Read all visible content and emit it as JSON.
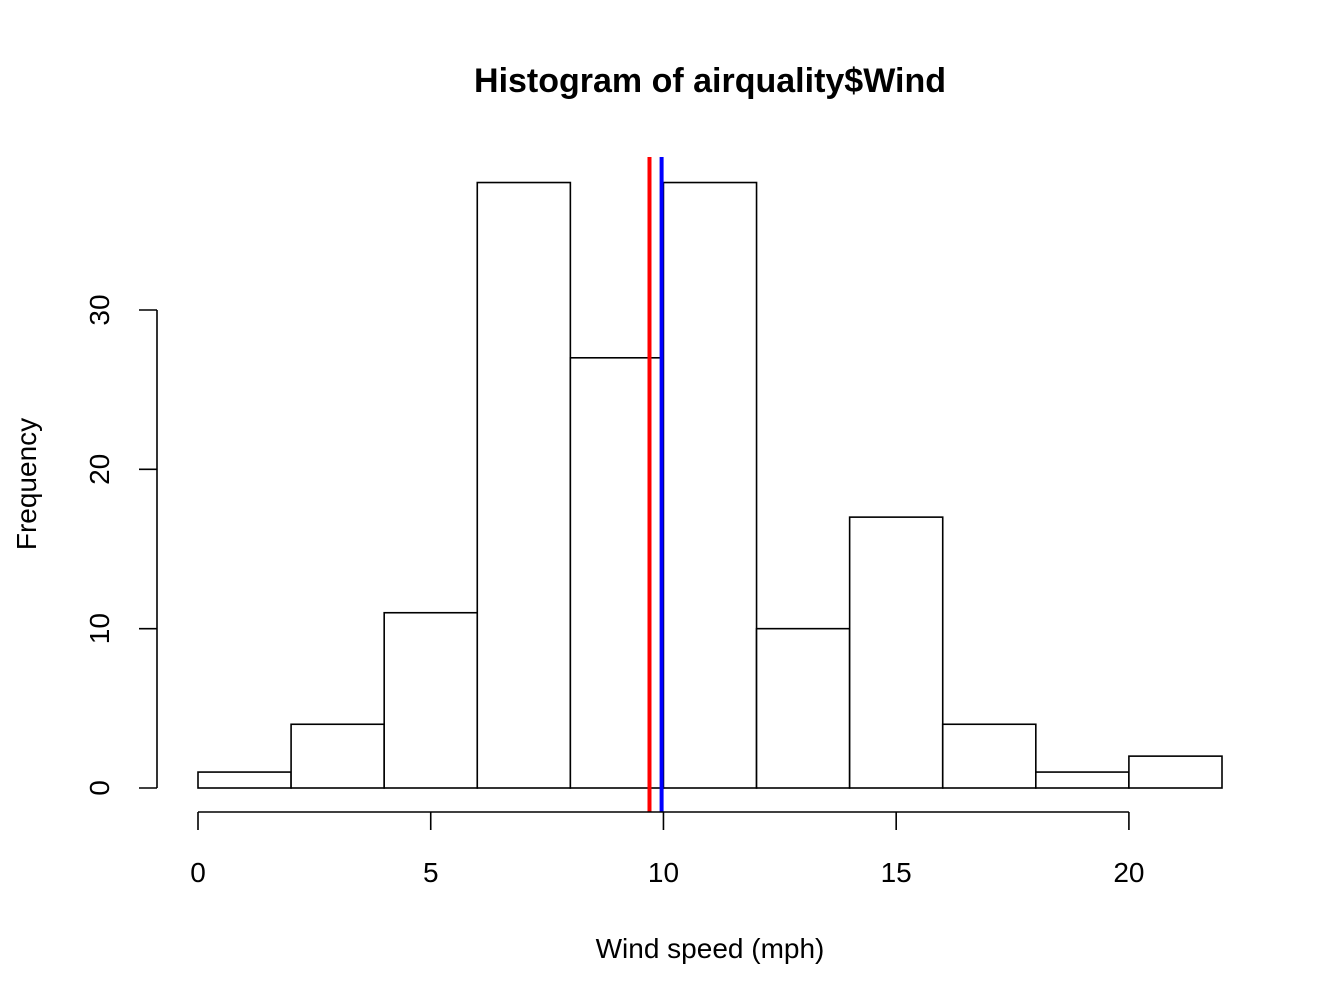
{
  "chart_data": {
    "type": "bar",
    "title": "Histogram of airquality$Wind",
    "xlabel": "Wind speed (mph)",
    "ylabel": "Frequency",
    "bin_edges": [
      0,
      2,
      4,
      6,
      8,
      10,
      12,
      14,
      16,
      18,
      20,
      22
    ],
    "values": [
      1,
      4,
      11,
      38,
      27,
      38,
      10,
      17,
      4,
      1,
      2
    ],
    "xlim": [
      0,
      22
    ],
    "ylim": [
      0,
      40
    ],
    "x_ticks": [
      0,
      5,
      10,
      15,
      20
    ],
    "y_ticks": [
      0,
      10,
      20,
      30
    ],
    "grid": false,
    "vlines": [
      {
        "x": 9.7,
        "color": "#ff0000"
      },
      {
        "x": 9.96,
        "color": "#0000ff"
      }
    ]
  }
}
